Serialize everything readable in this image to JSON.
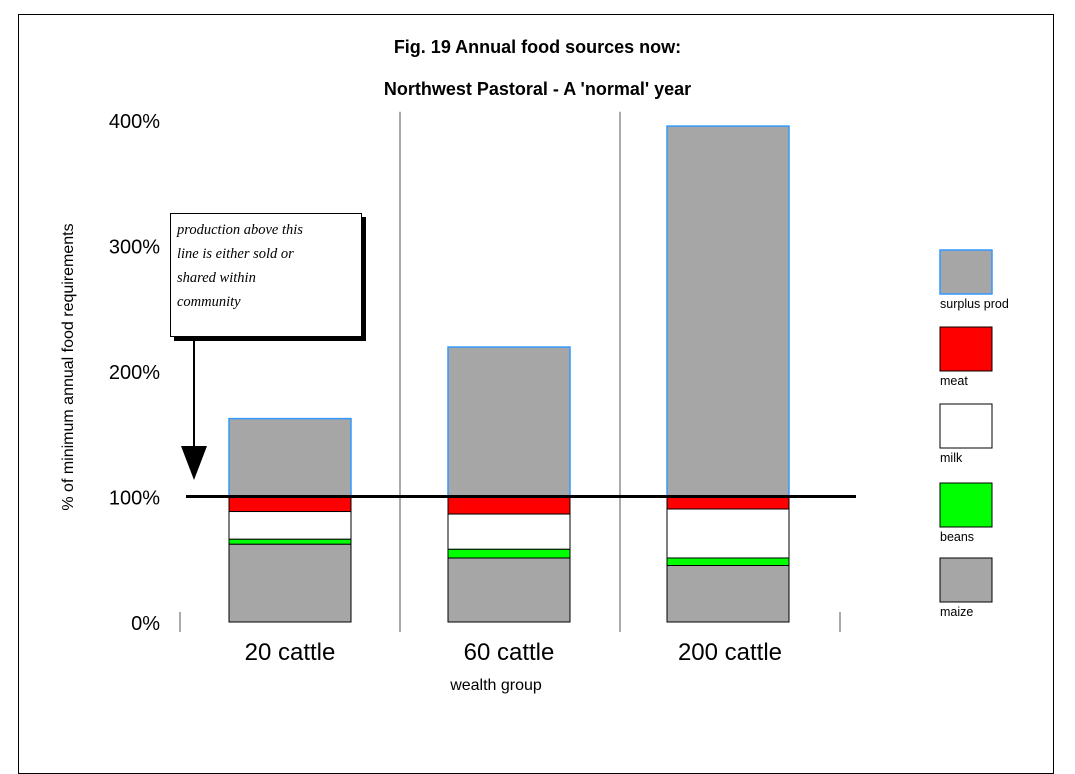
{
  "chart_data": {
    "type": "bar",
    "stacked": true,
    "title": "Fig. 19  Annual food sources now:",
    "subtitle": "Northwest Pastoral - A 'normal' year",
    "xlabel": "wealth group",
    "ylabel": "% of minimum annual food requirements",
    "ylim": [
      0,
      400
    ],
    "yticks": [
      "0%",
      "100%",
      "200%",
      "300%",
      "400%"
    ],
    "categories": [
      "20 cattle",
      "60 cattle",
      "200 cattle"
    ],
    "series": [
      {
        "name": "maize",
        "color": "#a6a6a6",
        "values": [
          62,
          51,
          45
        ]
      },
      {
        "name": "beans",
        "color": "#00ff00",
        "values": [
          4,
          7,
          6
        ]
      },
      {
        "name": "milk",
        "color": "#ffffff",
        "values": [
          22,
          28,
          39
        ]
      },
      {
        "name": "meat",
        "color": "#ff0000",
        "values": [
          12,
          14,
          10
        ]
      },
      {
        "name": "surplus prod",
        "color": "#a6a6a6",
        "edge": "#3399ff",
        "values": [
          62,
          119,
          295
        ]
      }
    ],
    "reference_line": 100,
    "annotation": {
      "lines": [
        "production above this",
        "line is either sold or",
        "shared within",
        "community"
      ]
    },
    "legend": {
      "placement": "right",
      "order": [
        "surplus prod",
        "meat",
        "milk",
        "beans",
        "maize"
      ]
    },
    "grid": false
  }
}
